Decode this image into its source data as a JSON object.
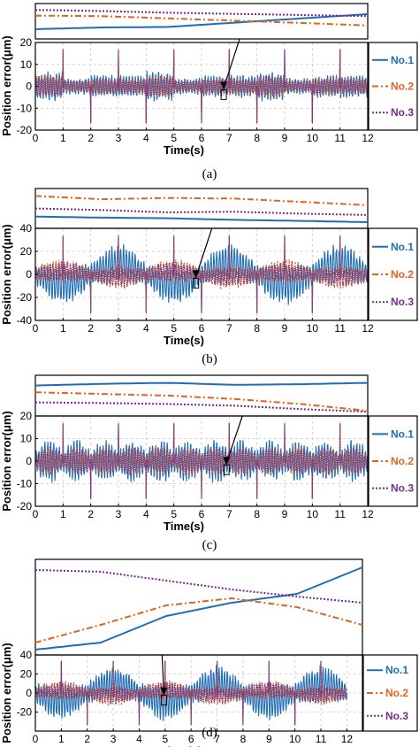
{
  "colors": {
    "no1": "#1f6db5",
    "no2": "#e0641e",
    "no3": "#7a2a8c"
  },
  "chart_data": [
    {
      "type": "line",
      "caption": "(a)",
      "xlabel": "Time(s)",
      "ylabel": "Position error(μm)",
      "xlim": [
        0,
        12
      ],
      "ylim": [
        -20,
        20
      ],
      "xticks": [
        0,
        1,
        2,
        3,
        4,
        5,
        6,
        7,
        8,
        9,
        10,
        11,
        12
      ],
      "yticks": [
        20,
        10,
        0,
        -10,
        -20
      ],
      "tick_labels_y": [
        "20",
        "10",
        "0",
        "-10",
        "-20"
      ],
      "grid": true,
      "legend": [
        "No.1",
        "No.2",
        "No.3"
      ],
      "legend_position": "right",
      "amplitudes": {
        "No.1": 9,
        "No.2": 7,
        "No.3": 6
      },
      "mode": "alt",
      "arrow_x": 6.8
    },
    {
      "type": "line",
      "caption": "(b)",
      "xlabel": "Time(s)",
      "ylabel": "Position error(μm)",
      "xlim": [
        0,
        12
      ],
      "ylim": [
        -40,
        40
      ],
      "xticks": [
        0,
        1,
        2,
        3,
        4,
        5,
        6,
        7,
        8,
        9,
        10,
        11,
        12
      ],
      "yticks": [
        40,
        20,
        0,
        -20,
        -40
      ],
      "tick_labels_y": [
        "40",
        "20",
        "0",
        "-20",
        "-40"
      ],
      "grid": true,
      "legend": [
        "No.1",
        "No.2",
        "No.3"
      ],
      "legend_position": "right",
      "amplitudes": {
        "No.1": 24,
        "No.2": 14,
        "No.3": 12
      },
      "mode": "arch",
      "arrow_x": 5.8
    },
    {
      "type": "line",
      "caption": "(c)",
      "xlabel": "Time(s)",
      "ylabel": "Position error(μm)",
      "xlim": [
        0,
        12
      ],
      "ylim": [
        -20,
        20
      ],
      "xticks": [
        0,
        1,
        2,
        3,
        4,
        5,
        6,
        7,
        8,
        9,
        10,
        11,
        12
      ],
      "yticks": [
        20,
        10,
        0,
        -10,
        -20
      ],
      "tick_labels_y": [
        "20",
        "10",
        "0",
        "-10",
        "-20"
      ],
      "grid": true,
      "legend": [
        "No.1",
        "No.2",
        "No.3"
      ],
      "legend_position": "right",
      "amplitudes": {
        "No.1": 13,
        "No.2": 9,
        "No.3": 8
      },
      "mode": "burst",
      "arrow_x": 6.9
    },
    {
      "type": "line",
      "caption": "(d)",
      "xlabel": "Time(s)",
      "ylabel": "Position error(μm)",
      "xlim": [
        0,
        12.6
      ],
      "ylim": [
        -40,
        40
      ],
      "xticks": [
        0,
        1,
        2,
        3,
        4,
        5,
        6,
        7,
        8,
        9,
        10,
        11,
        12
      ],
      "yticks": [
        40,
        20,
        0,
        -20
      ],
      "tick_labels_y": [
        "40",
        "20",
        "0",
        "-20"
      ],
      "grid": true,
      "legend": [
        "No.1",
        "No.2",
        "No.3"
      ],
      "legend_position": "right",
      "amplitudes": {
        "No.1": 26,
        "No.2": 14,
        "No.3": 12
      },
      "mode": "arch",
      "arrow_x": 4.95
    }
  ]
}
